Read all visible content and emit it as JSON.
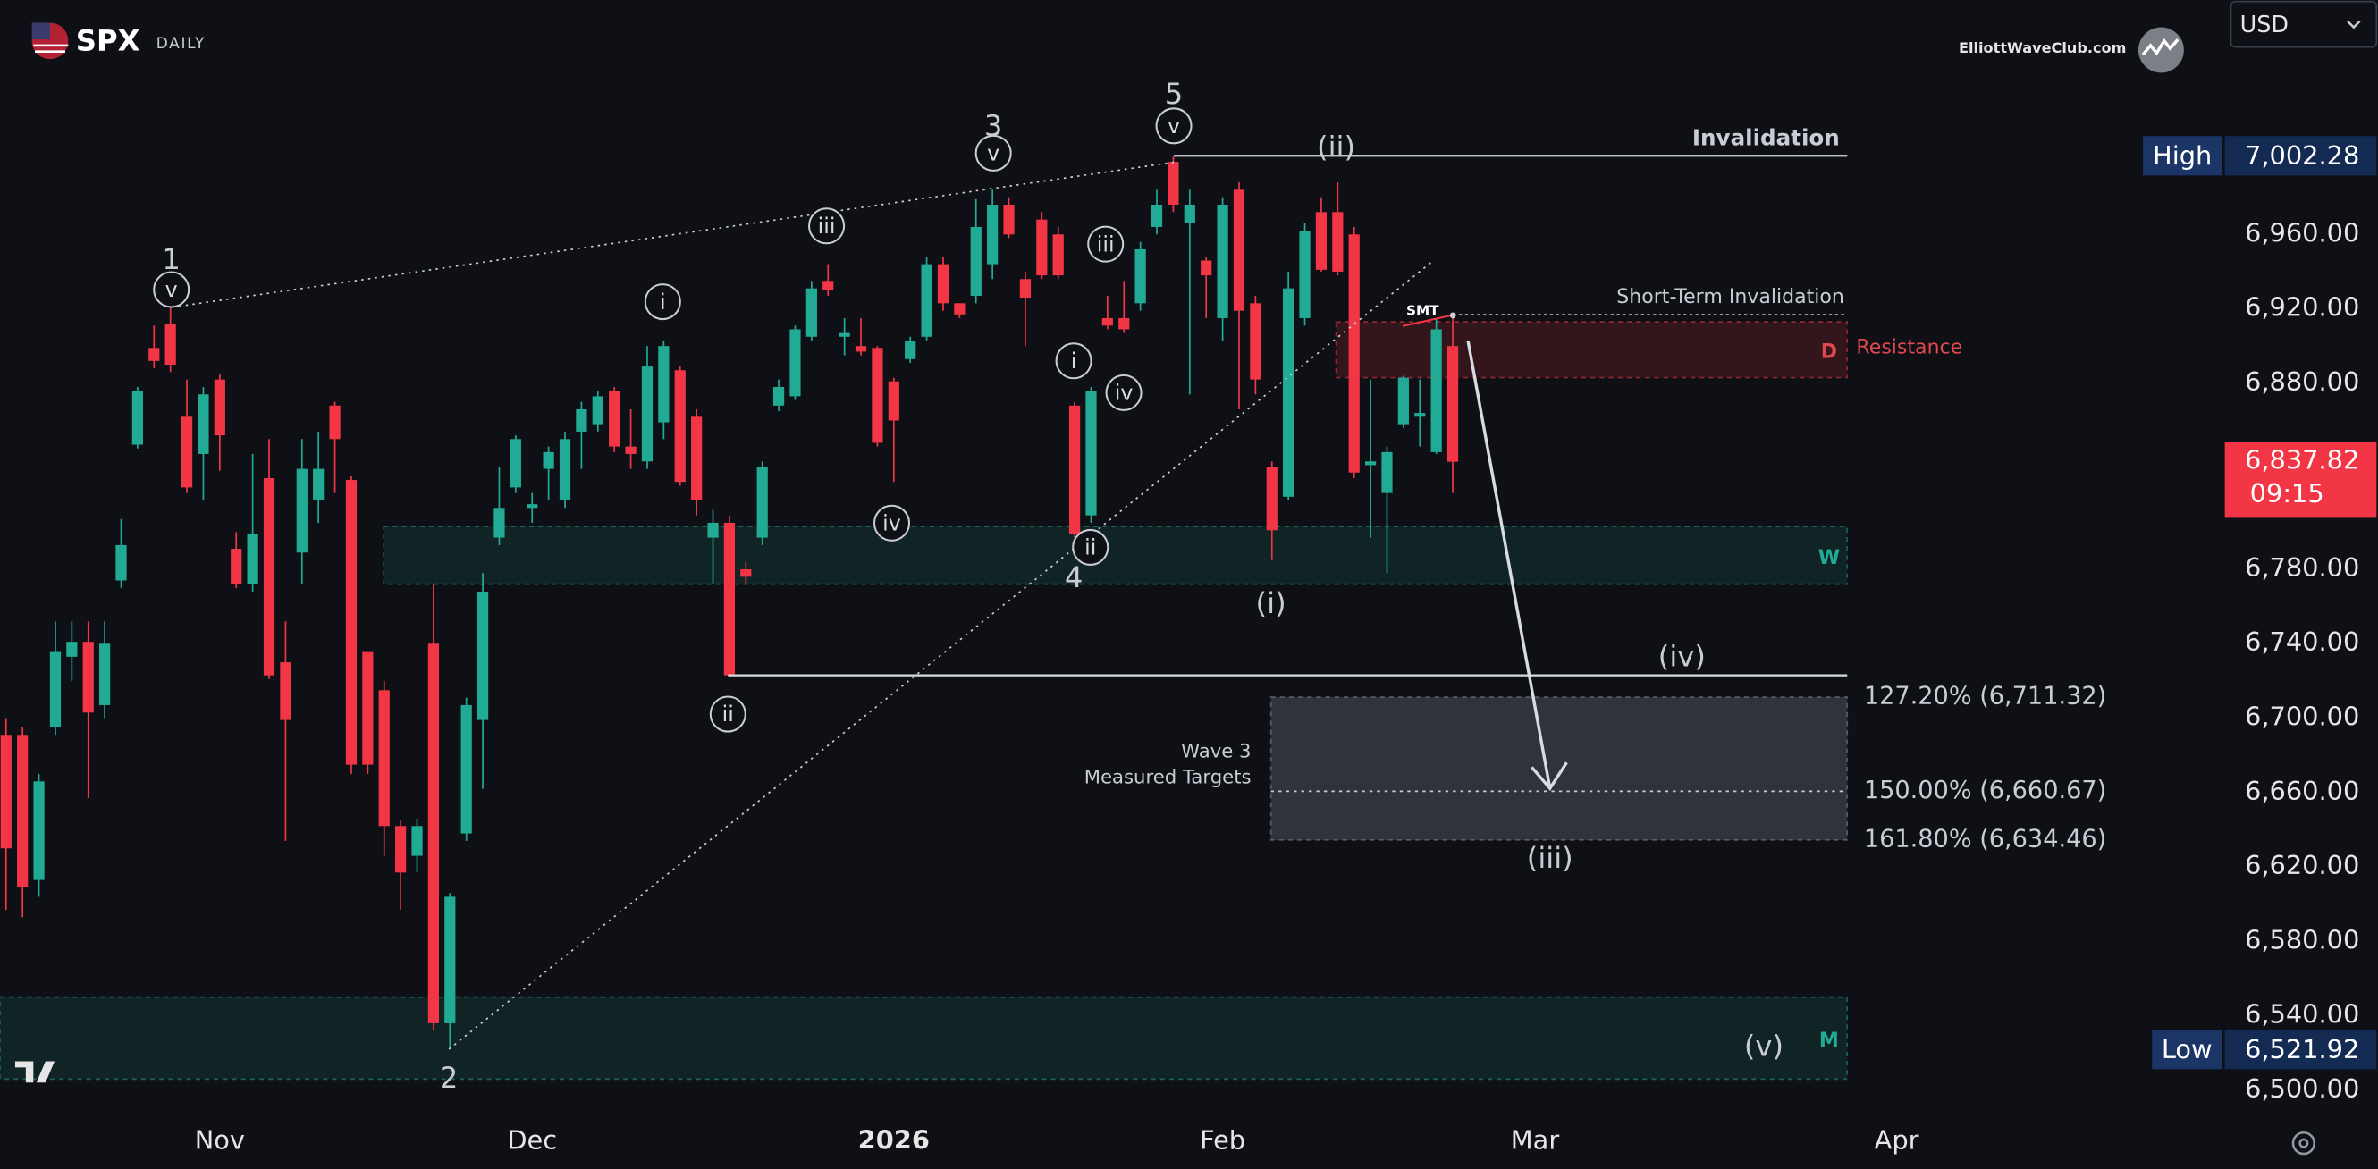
{
  "chart_data": {
    "type": "candlestick",
    "symbol": "SPX",
    "timeframe": "DAILY",
    "brand": "ElliottWaveClub.com",
    "currency": "USD",
    "up_color": "#22ab94",
    "down_color": "#f23645",
    "categories": [
      null,
      null,
      null,
      null,
      null,
      null,
      null,
      null,
      null,
      null,
      null,
      null,
      null,
      "Nov",
      null,
      null,
      null,
      null,
      null,
      null,
      null,
      null,
      null,
      null,
      null,
      null,
      null,
      null,
      null,
      null,
      null,
      null,
      "Dec",
      null,
      null,
      null,
      null,
      null,
      null,
      null,
      null,
      null,
      null,
      null,
      null,
      null,
      null,
      null,
      null,
      null,
      null,
      null,
      null,
      null,
      "2026",
      null,
      null,
      null,
      null,
      null,
      null,
      null,
      null,
      null,
      null,
      null,
      null,
      null,
      null,
      null,
      null,
      null,
      null,
      null,
      "Feb",
      null,
      null,
      null,
      null,
      null,
      null,
      null,
      null,
      null,
      null,
      null,
      null,
      null,
      null,
      null,
      null,
      null,
      null,
      "Mar",
      null,
      null,
      null,
      null,
      null,
      null,
      null,
      null,
      null,
      null,
      null,
      null,
      null,
      null,
      null,
      null,
      null,
      null,
      null,
      null,
      null,
      "Apr"
    ],
    "open": [
      6691,
      6691,
      6613,
      6695,
      6733,
      6741,
      6707,
      6774,
      6847,
      6899,
      6912,
      6862,
      6842,
      6882,
      6791,
      6772,
      6829,
      6730,
      6789,
      6817,
      6868,
      6828,
      6736,
      6715,
      6642,
      6626,
      6740,
      6536,
      6638,
      6699,
      6797,
      6824,
      6813,
      6834,
      6817,
      6854,
      6858,
      6876,
      6846,
      6838,
      6859,
      6887,
      6862,
      6797,
      6805,
      6780,
      6797,
      6868,
      6873,
      6905,
      6935,
      6905,
      6900,
      6899,
      6881,
      6893,
      6905,
      6944,
      6923,
      6927,
      6944,
      6976,
      6936,
      6968,
      6960,
      6868,
      6809,
      6915,
      6915,
      6923,
      6964,
      6999,
      6966,
      6946,
      6915,
      6984,
      6923,
      6835,
      6819,
      6915,
      6972,
      6972,
      6960,
      6836,
      6821,
      6858,
      6862,
      6843,
      6900,
      null,
      null,
      null,
      null,
      null,
      null,
      null,
      null,
      null,
      null,
      null,
      null,
      null,
      null,
      null,
      null,
      null,
      null,
      null,
      null,
      null,
      null,
      null,
      null,
      null,
      null,
      null
    ],
    "high": [
      6700,
      6695,
      6670,
      6752,
      6752,
      6752,
      6752,
      6807,
      6878,
      6911,
      6921,
      6882,
      6878,
      6885,
      6800,
      6842,
      6850,
      6752,
      6850,
      6854,
      6870,
      6830,
      6736,
      6720,
      6645,
      6646,
      6772,
      6606,
      6711,
      6778,
      6835,
      6852,
      6821,
      6846,
      6854,
      6870,
      6876,
      6878,
      6866,
      6900,
      6903,
      6889,
      6866,
      6812,
      6809,
      6784,
      6838,
      6882,
      6911,
      6935,
      6944,
      6915,
      6915,
      6900,
      6883,
      6905,
      6948,
      6948,
      6923,
      6979,
      6984,
      6980,
      6940,
      6972,
      6964,
      6870,
      6878,
      6927,
      6935,
      6956,
      6984,
      7002.28,
      6984,
      6948,
      6980,
      6988,
      6927,
      6838,
      6940,
      6966,
      6980,
      6988,
      6964,
      6882,
      6846,
      6884,
      6882,
      6915,
      6915,
      null,
      null,
      null,
      null,
      null,
      null,
      null,
      null,
      null,
      null,
      null,
      null,
      null,
      null,
      null,
      null,
      null,
      null,
      null,
      null,
      null,
      null,
      null,
      null,
      null,
      null,
      null
    ],
    "low": [
      6597,
      6593,
      6604,
      6691,
      6720,
      6657,
      6700,
      6770,
      6845,
      6888,
      6886,
      6821,
      6817,
      6833,
      6770,
      6768,
      6721,
      6634,
      6772,
      6805,
      6821,
      6670,
      6670,
      6626,
      6597,
      6617,
      6532,
      6521.92,
      6634,
      6662,
      6793,
      6821,
      6805,
      6817,
      6813,
      6834,
      6854,
      6843,
      6834,
      6834,
      6850,
      6825,
      6809,
      6772,
      6723,
      6772,
      6793,
      6865,
      6871,
      6903,
      6927,
      6895,
      6895,
      6846,
      6827,
      6891,
      6903,
      6919,
      6915,
      6923,
      6936,
      6958,
      6900,
      6936,
      6936,
      6797,
      6805,
      6909,
      6907,
      6919,
      6960,
      6972,
      6874,
      6915,
      6903,
      6866,
      6874,
      6785,
      6817,
      6911,
      6940,
      6938,
      6829,
      6797,
      6778,
      6856,
      6846,
      6842,
      6821,
      null,
      null,
      null,
      null,
      null,
      null,
      null,
      null,
      null,
      null,
      null,
      null,
      null,
      null,
      null,
      null,
      null,
      null,
      null,
      null,
      null,
      null,
      null,
      null,
      null,
      null,
      null
    ],
    "close": [
      6630,
      6609,
      6666,
      6736,
      6741,
      6703,
      6740,
      6793,
      6876,
      6892,
      6890,
      6824,
      6874,
      6852,
      6772,
      6799,
      6723,
      6699,
      6834,
      6834,
      6850,
      6675,
      6675,
      6642,
      6617,
      6642,
      6536,
      6604,
      6707,
      6768,
      6813,
      6850,
      6815,
      6843,
      6850,
      6866,
      6873,
      6846,
      6842,
      6889,
      6900,
      6827,
      6817,
      6805,
      6723,
      6776,
      6835,
      6878,
      6909,
      6931,
      6930,
      6907,
      6897,
      6848,
      6860,
      6903,
      6944,
      6923,
      6917,
      6964,
      6976,
      6960,
      6926,
      6938,
      6938,
      6799,
      6876,
      6911,
      6909,
      6952,
      6976,
      6976,
      6976,
      6938,
      6976,
      6919,
      6882,
      6801,
      6931,
      6962,
      6941,
      6940,
      6832,
      6838,
      6843,
      6883,
      6864,
      6909,
      6837.82,
      null,
      null,
      null,
      null,
      null,
      null,
      null,
      null,
      null,
      null,
      null,
      null,
      null,
      null,
      null,
      null,
      null,
      null,
      null,
      null,
      null,
      null,
      null,
      null,
      null,
      null,
      null
    ],
    "ylim": [
      6487,
      7086
    ],
    "yticks": [
      {
        "value": 6500,
        "label": "6,500.00"
      },
      {
        "value": 6540,
        "label": "6,540.00"
      },
      {
        "value": 6580,
        "label": "6,580.00"
      },
      {
        "value": 6620,
        "label": "6,620.00"
      },
      {
        "value": 6660,
        "label": "6,660.00"
      },
      {
        "value": 6700,
        "label": "6,700.00"
      },
      {
        "value": 6740,
        "label": "6,740.00"
      },
      {
        "value": 6780,
        "label": "6,780.00"
      },
      {
        "value": 6880,
        "label": "6,880.00"
      },
      {
        "value": 6920,
        "label": "6,920.00"
      },
      {
        "value": 6960,
        "label": "6,960.00"
      }
    ],
    "high_tag": {
      "label": "High",
      "value": 7002.28,
      "value_label": "7,002.28"
    },
    "low_tag": {
      "label": "Low",
      "value": 6521.92,
      "value_label": "6,521.92"
    },
    "last_tag": {
      "value": 6837.82,
      "value_label": "6,837.82",
      "countdown": "09:15"
    },
    "levels": [
      {
        "label": "Invalidation",
        "value": 7002.28
      },
      {
        "label": "Short-Term Invalidation",
        "value": 6917
      }
    ],
    "wave_iv_line": 6723,
    "zones": [
      {
        "label": "D",
        "text": "Resistance",
        "range": [
          6883,
          6913
        ]
      },
      {
        "label": "W",
        "range": [
          6772,
          6803
        ]
      },
      {
        "label": "M",
        "range": [
          6506,
          6550
        ]
      }
    ],
    "targets": {
      "title": [
        "Wave 3",
        "Measured Targets"
      ],
      "levels": [
        {
          "label": "127.20% (6,711.32)",
          "value": 6711.32
        },
        {
          "label": "150.00% (6,660.67)",
          "value": 6660.67
        },
        {
          "label": "161.80% (6,634.46)",
          "value": 6634.46
        }
      ]
    },
    "smt": "SMT",
    "wave_labels": [
      "1",
      "v",
      "i",
      "iii",
      "iv",
      "ii",
      "2",
      "3",
      "v",
      "iii",
      "i",
      "iv",
      "ii",
      "4",
      "5",
      "v",
      "(ii)",
      "(i)",
      "(v)",
      "(iv)",
      "(iii)"
    ]
  }
}
